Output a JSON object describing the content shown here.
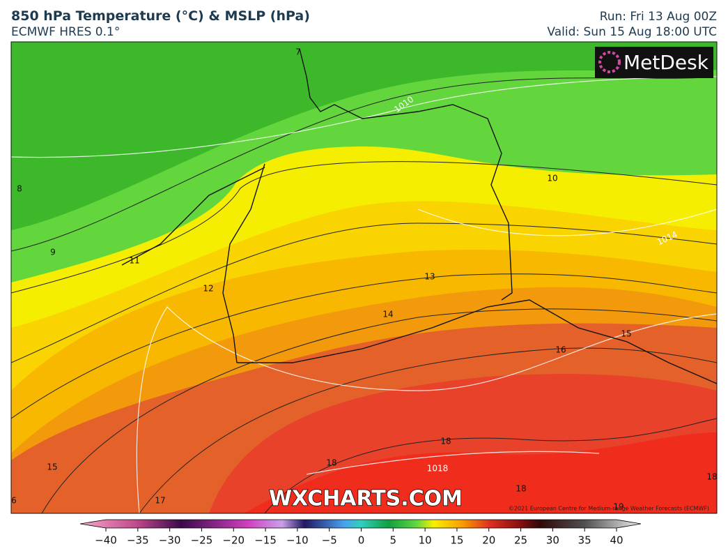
{
  "header": {
    "title": "850 hPa Temperature (°C) & MSLP (hPa)",
    "subtitle": "ECMWF HRES 0.1°",
    "run": "Run: Fri 13 Aug 00Z",
    "valid": "Valid: Sun 15 Aug 18:00 UTC"
  },
  "map": {
    "logo": "MetDesk",
    "watermark": "WXCHARTS.COM",
    "copyright": "©2021 European Centre for Medium-range Weather Forecasts (ECMWF)",
    "contour_labels": [
      "7",
      "1010",
      "8",
      "10",
      "1014",
      "9",
      "11",
      "12",
      "13",
      "14",
      "15",
      "16",
      "18",
      "18",
      "1018",
      "15",
      "18",
      "18",
      "19",
      "6",
      "17"
    ]
  },
  "colorbar": {
    "ticks": [
      {
        "value": -40,
        "label": "−40"
      },
      {
        "value": -35,
        "label": "−35"
      },
      {
        "value": -30,
        "label": "−30"
      },
      {
        "value": -25,
        "label": "−25"
      },
      {
        "value": -20,
        "label": "−20"
      },
      {
        "value": -15,
        "label": "−15"
      },
      {
        "value": -10,
        "label": "−10"
      },
      {
        "value": -5,
        "label": "−5"
      },
      0,
      5,
      10,
      15,
      20,
      25,
      30,
      35,
      40
    ]
  }
}
